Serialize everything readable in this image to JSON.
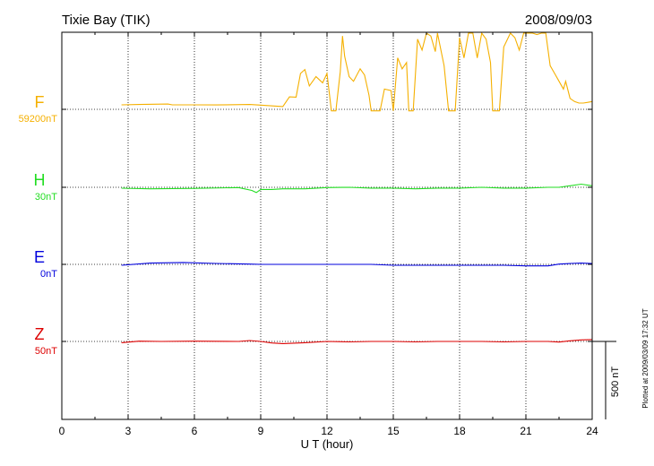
{
  "chart_data": {
    "type": "line",
    "title": "Tixie Bay (TIK)",
    "date": "2008/09/03",
    "xlabel": "U T (hour)",
    "xlim": [
      0,
      24
    ],
    "xticks": [
      "0",
      "3",
      "6",
      "9",
      "12",
      "15",
      "18",
      "21",
      "24"
    ],
    "grid": true,
    "scale_bar_label": "500 nT",
    "plotted_note": "Plotted at 2009/03/09 17:32 UT",
    "series": [
      {
        "name": "F",
        "baseline_label": "59200nT",
        "color": "#f5b000",
        "values": [
          [
            2.7,
            29
          ],
          [
            3.5,
            31
          ],
          [
            4.8,
            34
          ],
          [
            5.0,
            29
          ],
          [
            6.0,
            29
          ],
          [
            7.0,
            28
          ],
          [
            8.5,
            31
          ],
          [
            9.0,
            27
          ],
          [
            10.0,
            18
          ],
          [
            10.3,
            80
          ],
          [
            10.6,
            78
          ],
          [
            10.8,
            230
          ],
          [
            11.0,
            255
          ],
          [
            11.2,
            150
          ],
          [
            11.5,
            210
          ],
          [
            11.8,
            170
          ],
          [
            12.0,
            230
          ],
          [
            12.2,
            -10
          ],
          [
            12.4,
            -10
          ],
          [
            12.6,
            240
          ],
          [
            12.7,
            470
          ],
          [
            12.8,
            340
          ],
          [
            13.0,
            210
          ],
          [
            13.2,
            180
          ],
          [
            13.5,
            260
          ],
          [
            13.7,
            220
          ],
          [
            13.9,
            90
          ],
          [
            14.0,
            -10
          ],
          [
            14.2,
            -10
          ],
          [
            14.4,
            -10
          ],
          [
            14.6,
            130
          ],
          [
            14.9,
            120
          ],
          [
            15.0,
            -10
          ],
          [
            15.2,
            330
          ],
          [
            15.4,
            260
          ],
          [
            15.6,
            300
          ],
          [
            15.7,
            -10
          ],
          [
            15.9,
            -10
          ],
          [
            16.1,
            450
          ],
          [
            16.3,
            380
          ],
          [
            16.5,
            500
          ],
          [
            16.7,
            470
          ],
          [
            16.9,
            370
          ],
          [
            17.0,
            540
          ],
          [
            17.3,
            280
          ],
          [
            17.5,
            -10
          ],
          [
            17.8,
            -10
          ],
          [
            18.0,
            460
          ],
          [
            18.2,
            330
          ],
          [
            18.4,
            590
          ],
          [
            18.6,
            530
          ],
          [
            18.8,
            330
          ],
          [
            19.0,
            510
          ],
          [
            19.2,
            450
          ],
          [
            19.4,
            300
          ],
          [
            19.5,
            -10
          ],
          [
            19.8,
            -10
          ],
          [
            20.0,
            400
          ],
          [
            20.3,
            630
          ],
          [
            20.5,
            460
          ],
          [
            20.7,
            380
          ],
          [
            20.9,
            580
          ],
          [
            21.0,
            500
          ],
          [
            21.1,
            640
          ],
          [
            21.3,
            640
          ],
          [
            21.5,
            480
          ],
          [
            21.7,
            500
          ],
          [
            21.9,
            560
          ],
          [
            22.1,
            280
          ],
          [
            22.3,
            230
          ],
          [
            22.5,
            180
          ],
          [
            22.7,
            130
          ],
          [
            22.8,
            180
          ],
          [
            23.0,
            70
          ],
          [
            23.2,
            50
          ],
          [
            23.4,
            40
          ],
          [
            23.6,
            40
          ],
          [
            23.8,
            45
          ],
          [
            24.0,
            50
          ]
        ]
      },
      {
        "name": "H",
        "baseline_label": "30nT",
        "color": "#22dd22",
        "values": [
          [
            2.7,
            -6
          ],
          [
            4.0,
            -10
          ],
          [
            6.0,
            -7
          ],
          [
            8.0,
            -2
          ],
          [
            8.6,
            -20
          ],
          [
            8.8,
            -34
          ],
          [
            9.0,
            -14
          ],
          [
            9.5,
            -14
          ],
          [
            10.0,
            -10
          ],
          [
            11.0,
            -10
          ],
          [
            12.0,
            -2
          ],
          [
            13.0,
            0
          ],
          [
            14.0,
            -5
          ],
          [
            15.0,
            -5
          ],
          [
            16.0,
            -10
          ],
          [
            17.0,
            -5
          ],
          [
            18.0,
            -5
          ],
          [
            19.0,
            0
          ],
          [
            20.0,
            -5
          ],
          [
            21.0,
            -5
          ],
          [
            22.0,
            0
          ],
          [
            22.5,
            0
          ],
          [
            23.0,
            10
          ],
          [
            23.5,
            20
          ],
          [
            24.0,
            10
          ]
        ]
      },
      {
        "name": "E",
        "baseline_label": "0nT",
        "color": "#0000dd",
        "values": [
          [
            2.7,
            -6
          ],
          [
            4.0,
            8
          ],
          [
            5.5,
            12
          ],
          [
            7.0,
            6
          ],
          [
            8.5,
            2
          ],
          [
            9.0,
            0
          ],
          [
            10.0,
            0
          ],
          [
            11.0,
            0
          ],
          [
            12.0,
            0
          ],
          [
            13.0,
            0
          ],
          [
            14.0,
            0
          ],
          [
            15.0,
            -6
          ],
          [
            16.0,
            -6
          ],
          [
            17.0,
            -6
          ],
          [
            18.0,
            -6
          ],
          [
            19.0,
            -6
          ],
          [
            20.0,
            -6
          ],
          [
            21.0,
            -10
          ],
          [
            22.0,
            -10
          ],
          [
            22.5,
            2
          ],
          [
            23.0,
            6
          ],
          [
            23.5,
            8
          ],
          [
            24.0,
            6
          ]
        ]
      },
      {
        "name": "Z",
        "baseline_label": "50nT",
        "color": "#dd0000",
        "values": [
          [
            2.7,
            -8
          ],
          [
            3.5,
            2
          ],
          [
            4.5,
            0
          ],
          [
            6.0,
            2
          ],
          [
            8.0,
            0
          ],
          [
            8.5,
            6
          ],
          [
            9.0,
            0
          ],
          [
            9.5,
            -10
          ],
          [
            10.0,
            -14
          ],
          [
            11.0,
            -8
          ],
          [
            12.0,
            0
          ],
          [
            13.0,
            -3
          ],
          [
            14.0,
            0
          ],
          [
            15.0,
            0
          ],
          [
            16.0,
            -3
          ],
          [
            17.0,
            0
          ],
          [
            18.0,
            0
          ],
          [
            19.0,
            0
          ],
          [
            20.0,
            -3
          ],
          [
            21.0,
            0
          ],
          [
            22.0,
            0
          ],
          [
            22.5,
            -4
          ],
          [
            23.0,
            4
          ],
          [
            23.5,
            10
          ],
          [
            24.0,
            12
          ]
        ]
      }
    ]
  }
}
